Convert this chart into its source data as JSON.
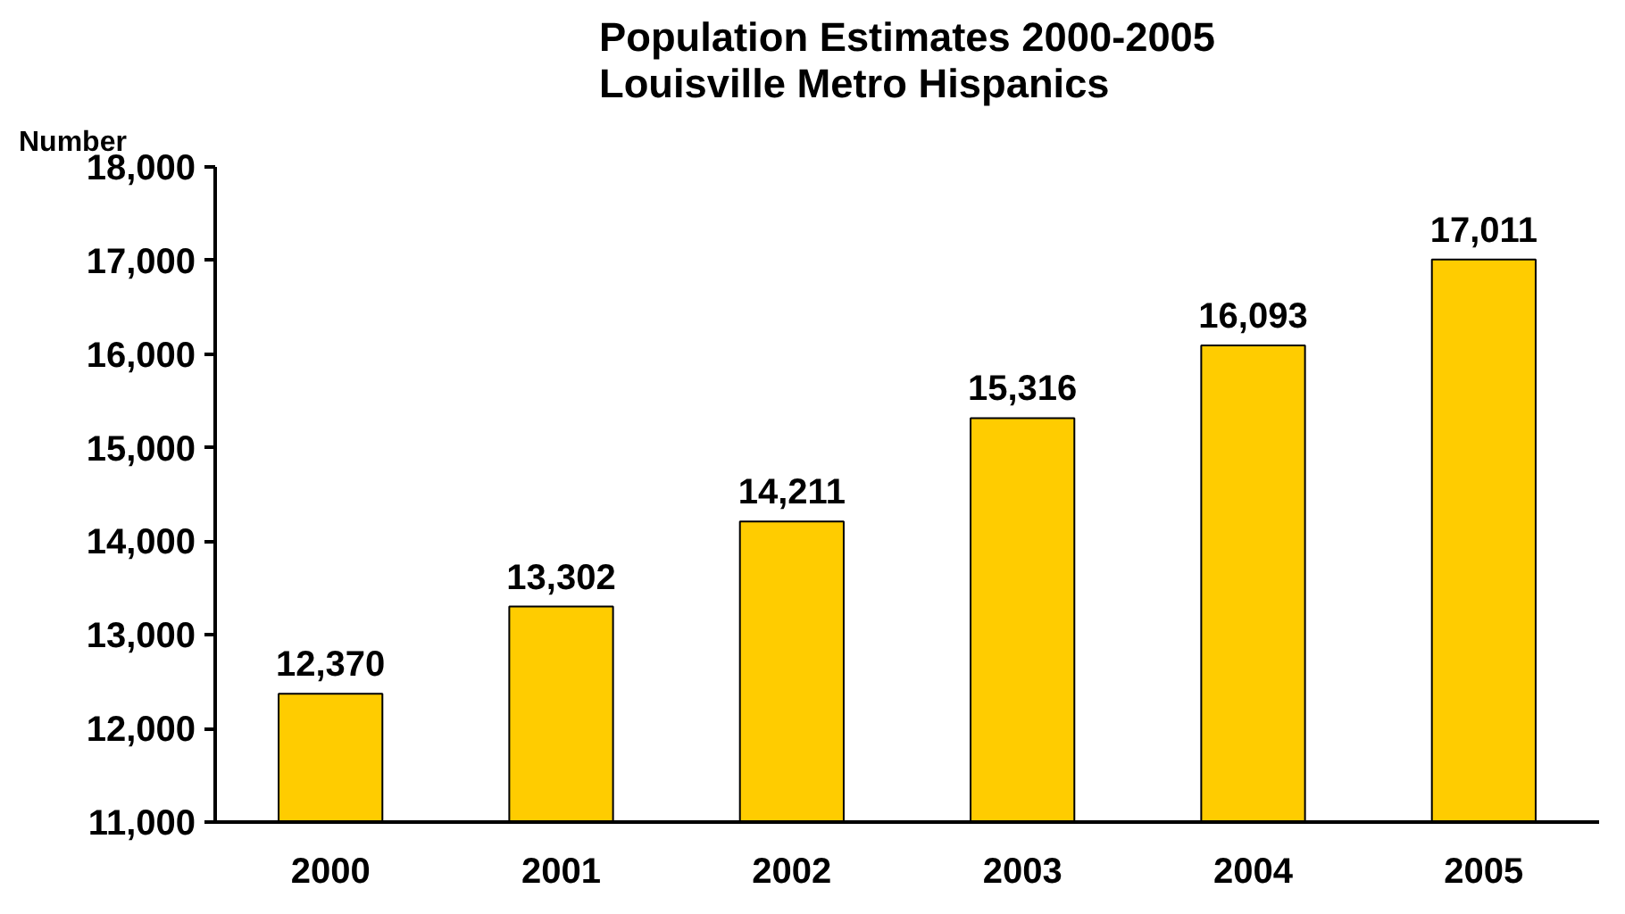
{
  "chart_data": {
    "type": "bar",
    "title": "Population Estimates 2000-2005\nLouisville Metro Hispanics",
    "ylabel": "Number",
    "categories": [
      "2000",
      "2001",
      "2002",
      "2003",
      "2004",
      "2005"
    ],
    "values": [
      12370,
      13302,
      14211,
      15316,
      16093,
      17011
    ],
    "color": "#ffcc00",
    "ylim": [
      11000,
      18000
    ],
    "yticks": [
      {
        "value": 11000,
        "label": "11,000"
      },
      {
        "value": 12000,
        "label": "12,000"
      },
      {
        "value": 13000,
        "label": "13,000"
      },
      {
        "value": 14000,
        "label": "14,000"
      },
      {
        "value": 15000,
        "label": "15,000"
      },
      {
        "value": 16000,
        "label": "16,000"
      },
      {
        "value": 17000,
        "label": "17,000"
      },
      {
        "value": 18000,
        "label": "18,000"
      }
    ],
    "value_labels": [
      "12,370",
      "13,302",
      "14,211",
      "15,316",
      "16,093",
      "17,011"
    ],
    "grid": false
  }
}
